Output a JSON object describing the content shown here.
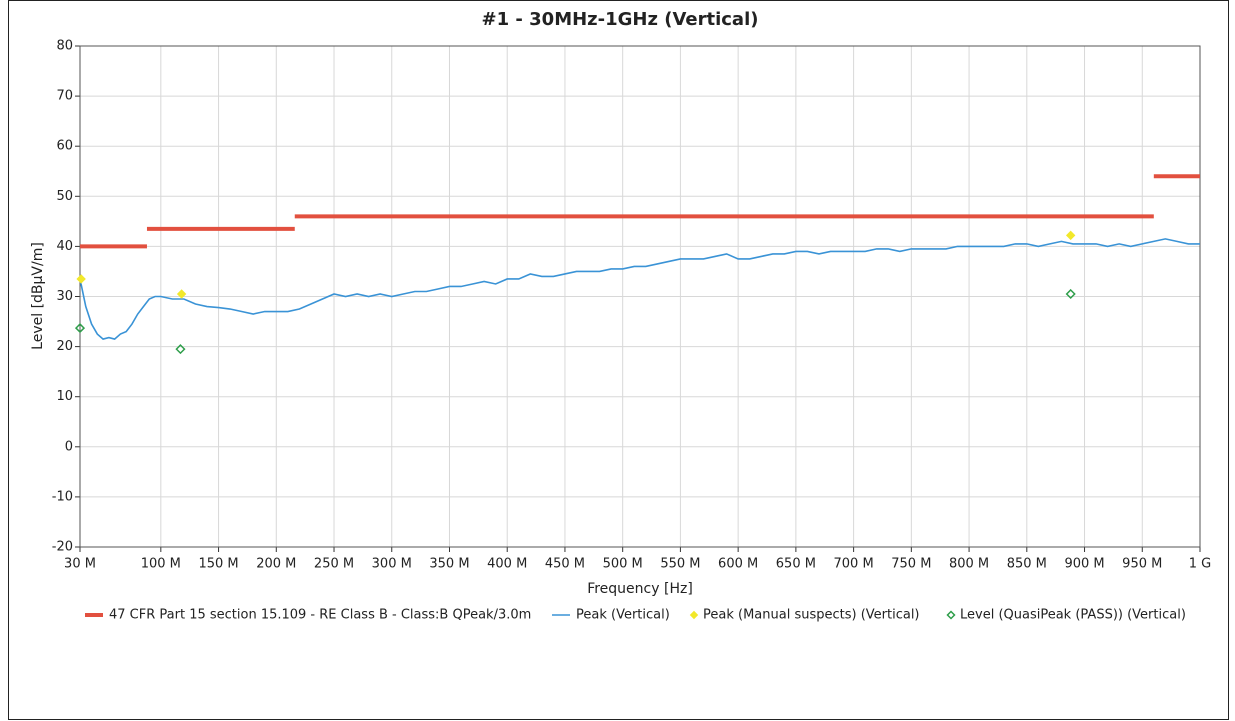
{
  "chart_data": {
    "type": "line",
    "title": "#1 - 30MHz-1GHz (Vertical)",
    "x_label": "Frequency [Hz]",
    "y_label": "Level [dBµV/m]",
    "xlim": [
      30000000,
      1000000000
    ],
    "ylim": [
      -20,
      80
    ],
    "xticks": [
      {
        "value": 30000000,
        "label": "30 M"
      },
      {
        "value": 100000000,
        "label": "100 M"
      },
      {
        "value": 150000000,
        "label": "150 M"
      },
      {
        "value": 200000000,
        "label": "200 M"
      },
      {
        "value": 250000000,
        "label": "250 M"
      },
      {
        "value": 300000000,
        "label": "300 M"
      },
      {
        "value": 350000000,
        "label": "350 M"
      },
      {
        "value": 400000000,
        "label": "400 M"
      },
      {
        "value": 450000000,
        "label": "450 M"
      },
      {
        "value": 500000000,
        "label": "500 M"
      },
      {
        "value": 550000000,
        "label": "550 M"
      },
      {
        "value": 600000000,
        "label": "600 M"
      },
      {
        "value": 650000000,
        "label": "650 M"
      },
      {
        "value": 700000000,
        "label": "700 M"
      },
      {
        "value": 750000000,
        "label": "750 M"
      },
      {
        "value": 800000000,
        "label": "800 M"
      },
      {
        "value": 850000000,
        "label": "850 M"
      },
      {
        "value": 900000000,
        "label": "900 M"
      },
      {
        "value": 950000000,
        "label": "950 M"
      },
      {
        "value": 1000000000,
        "label": "1 G"
      }
    ],
    "yticks": [
      -20,
      -10,
      0,
      10,
      20,
      30,
      40,
      50,
      60,
      70,
      80
    ],
    "grid": true,
    "legend": "bottom",
    "series": [
      {
        "name": "47 CFR Part 15 section 15.109 - RE Class B - Class:B QPeak/3.0m",
        "type": "limit",
        "color": "#e2503f",
        "segments": [
          {
            "x": [
              30000000,
              88000000
            ],
            "values": [
              40,
              40
            ]
          },
          {
            "x": [
              88000000,
              216000000
            ],
            "values": [
              43.5,
              43.5
            ]
          },
          {
            "x": [
              216000000,
              960000000
            ],
            "values": [
              46,
              46
            ]
          },
          {
            "x": [
              960000000,
              1000000000
            ],
            "values": [
              54,
              54
            ]
          }
        ]
      },
      {
        "name": "Peak (Vertical)",
        "type": "line",
        "color": "#3a93d6",
        "x": [
          30000000,
          35000000,
          40000000,
          45000000,
          50000000,
          55000000,
          60000000,
          65000000,
          70000000,
          75000000,
          80000000,
          85000000,
          90000000,
          95000000,
          100000000,
          110000000,
          120000000,
          130000000,
          140000000,
          150000000,
          160000000,
          170000000,
          180000000,
          190000000,
          200000000,
          210000000,
          220000000,
          230000000,
          240000000,
          250000000,
          260000000,
          270000000,
          280000000,
          290000000,
          300000000,
          310000000,
          320000000,
          330000000,
          340000000,
          350000000,
          360000000,
          370000000,
          380000000,
          390000000,
          400000000,
          410000000,
          420000000,
          430000000,
          440000000,
          450000000,
          460000000,
          470000000,
          480000000,
          490000000,
          500000000,
          510000000,
          520000000,
          530000000,
          540000000,
          550000000,
          560000000,
          570000000,
          580000000,
          590000000,
          600000000,
          610000000,
          620000000,
          630000000,
          640000000,
          650000000,
          660000000,
          670000000,
          680000000,
          690000000,
          700000000,
          710000000,
          720000000,
          730000000,
          740000000,
          750000000,
          760000000,
          770000000,
          780000000,
          790000000,
          800000000,
          810000000,
          820000000,
          830000000,
          840000000,
          850000000,
          860000000,
          870000000,
          880000000,
          890000000,
          900000000,
          910000000,
          920000000,
          930000000,
          940000000,
          950000000,
          960000000,
          970000000,
          980000000,
          990000000,
          1000000000
        ],
        "values": [
          33.5,
          28,
          24.5,
          22.5,
          21.5,
          21.8,
          21.5,
          22.5,
          23,
          24.5,
          26.5,
          28,
          29.5,
          30,
          30,
          29.5,
          29.5,
          28.5,
          28,
          27.8,
          27.5,
          27,
          26.5,
          27,
          27,
          27,
          27.5,
          28.5,
          29.5,
          30.5,
          30,
          30.5,
          30,
          30.5,
          30,
          30.5,
          31,
          31,
          31.5,
          32,
          32,
          32.5,
          33,
          32.5,
          33.5,
          33.5,
          34.5,
          34,
          34,
          34.5,
          35,
          35,
          35,
          35.5,
          35.5,
          36,
          36,
          36.5,
          37,
          37.5,
          37.5,
          37.5,
          38,
          38.5,
          37.5,
          37.5,
          38,
          38.5,
          38.5,
          39,
          39,
          38.5,
          39,
          39,
          39,
          39,
          39.5,
          39.5,
          39,
          39.5,
          39.5,
          39.5,
          39.5,
          40,
          40,
          40,
          40,
          40,
          40.5,
          40.5,
          40,
          40.5,
          41,
          40.5,
          40.5,
          40.5,
          40,
          40.5,
          40,
          40.5,
          41,
          41.5,
          41,
          40.5,
          40.5
        ]
      },
      {
        "name": "Peak (Manual suspects) (Vertical)",
        "type": "scatter",
        "marker": "diamond-filled",
        "color": "#f2e82a",
        "x": [
          31000000,
          118000000,
          888000000
        ],
        "values": [
          33.5,
          30.5,
          42.2
        ]
      },
      {
        "name": "Level (QuasiPeak (PASS)) (Vertical)",
        "type": "scatter",
        "marker": "diamond-open",
        "color": "#2e9e4a",
        "x": [
          30000000,
          117000000,
          888000000
        ],
        "values": [
          23.7,
          19.5,
          30.5
        ]
      }
    ]
  }
}
